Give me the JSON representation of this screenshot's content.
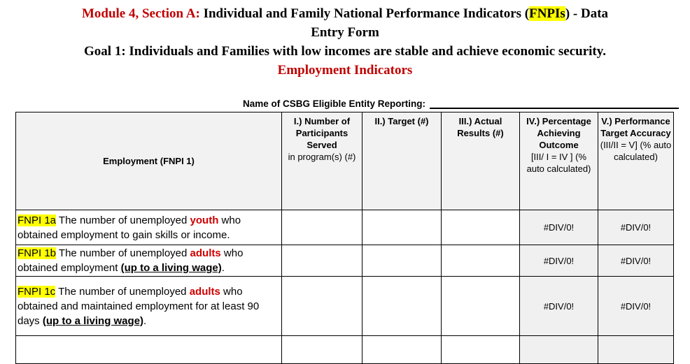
{
  "header": {
    "module_label": "Module 4, Section A:",
    "title_main": " Individual and Family National Performance Indicators (",
    "title_highlight": "FNPIs",
    "title_suffix": ") - Data",
    "title_line2": "Entry Form",
    "goal": "Goal 1: Individuals and Families with low incomes are stable and achieve economic security.",
    "section": "Employment Indicators"
  },
  "entity": {
    "label": "Name of CSBG Eligible Entity Reporting:",
    "value": ""
  },
  "table": {
    "columns": [
      {
        "title": "Employment (FNPI 1)",
        "sub": ""
      },
      {
        "title": "I.) Number of Participants Served",
        "sub": "in program(s) (#)"
      },
      {
        "title": "II.) Target (#)",
        "sub": ""
      },
      {
        "title": "III.) Actual Results (#)",
        "sub": ""
      },
      {
        "title": "IV.) Percentage Achieving Outcome",
        "sub": "[III/ I = IV ] (% auto calculated)"
      },
      {
        "title": "V.) Performance Target Accuracy",
        "sub": "(III/II = V] (% auto calculated)"
      }
    ],
    "rows": [
      {
        "segments": [
          {
            "text": "FNPI 1a",
            "style": "highlight"
          },
          {
            "text": " The number of unemployed ",
            "style": "plain"
          },
          {
            "text": "youth",
            "style": "red-bold"
          },
          {
            "text": " who obtained employment to gain skills or income.",
            "style": "plain"
          }
        ],
        "values": {
          "participants": "",
          "target": "",
          "actual": "",
          "percentage": "#DIV/0!",
          "accuracy": "#DIV/0!"
        }
      },
      {
        "segments": [
          {
            "text": "FNPI 1b",
            "style": "highlight"
          },
          {
            "text": " The number of unemployed ",
            "style": "plain"
          },
          {
            "text": "adults",
            "style": "red-bold"
          },
          {
            "text": " who obtained employment ",
            "style": "plain"
          },
          {
            "text": "(up to a living wage)",
            "style": "bold-underline"
          },
          {
            "text": ".",
            "style": "plain"
          }
        ],
        "values": {
          "participants": "",
          "target": "",
          "actual": "",
          "percentage": "#DIV/0!",
          "accuracy": "#DIV/0!"
        }
      },
      {
        "segments": [
          {
            "text": "FNPI 1c",
            "style": "highlight"
          },
          {
            "text": " The number of unemployed ",
            "style": "plain"
          },
          {
            "text": "adults",
            "style": "red-bold"
          },
          {
            "text": " who obtained and maintained employment for at least 90 days ",
            "style": "plain"
          },
          {
            "text": "(up to a living wage)",
            "style": "bold-underline"
          },
          {
            "text": ".",
            "style": "plain"
          }
        ],
        "values": {
          "participants": "",
          "target": "",
          "actual": "",
          "percentage": "#DIV/0!",
          "accuracy": "#DIV/0!"
        }
      },
      {
        "segments": [],
        "values": {
          "participants": "",
          "target": "",
          "actual": "",
          "percentage": "",
          "accuracy": ""
        }
      }
    ]
  },
  "colors": {
    "title_red": "#C00000",
    "emphasis_red": "#D00000",
    "highlight_yellow": "#FFFF00",
    "header_fill": "#F2F2F2",
    "calculated_fill": "#F0F0F0",
    "border": "#000000"
  }
}
